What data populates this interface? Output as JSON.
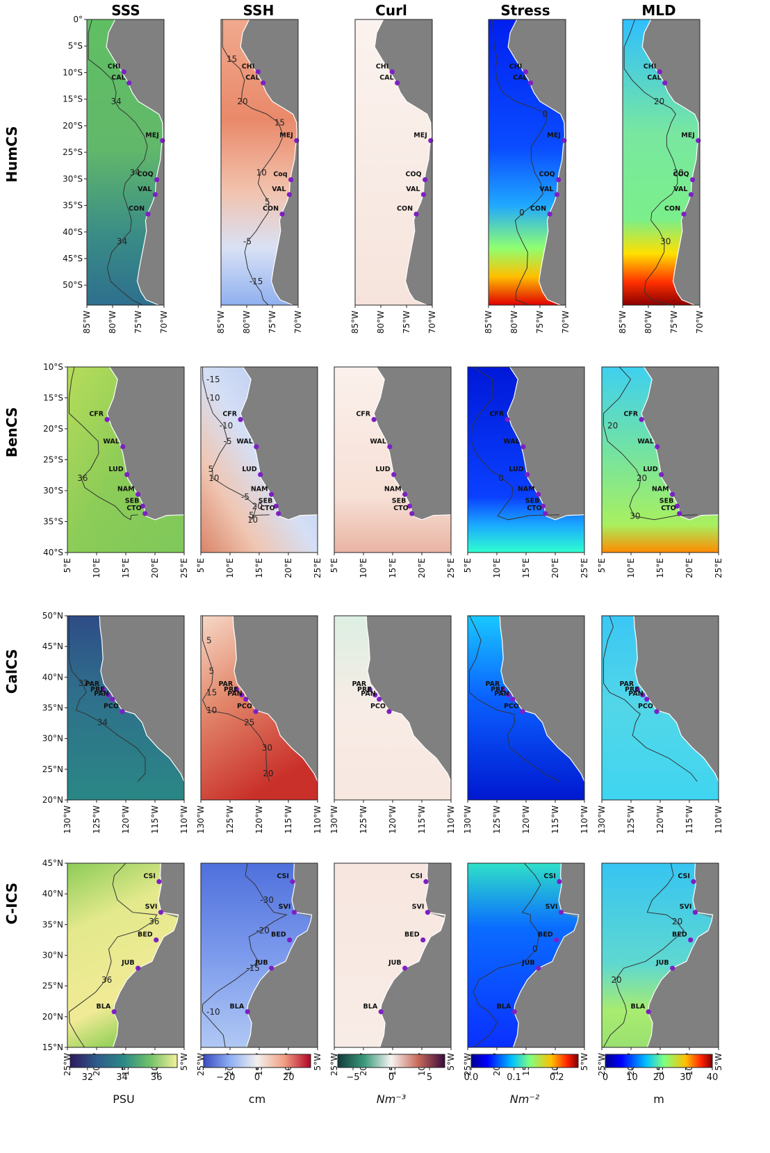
{
  "columns": [
    "SSS",
    "SSH",
    "Curl",
    "Stress",
    "MLD"
  ],
  "colors": {
    "land": "#808080",
    "station": "#7d1fc4"
  },
  "rows": [
    {
      "name": "HumCS",
      "yticks": [
        "0°",
        "5°S",
        "10°S",
        "15°S",
        "20°S",
        "25°S",
        "30°S",
        "35°S",
        "40°S",
        "45°S",
        "50°S"
      ],
      "xticks": [
        "85°W",
        "80°W",
        "75°W",
        "70°W"
      ],
      "stations": [
        {
          "label": "CHI",
          "lon": -77.8,
          "lat": -9.9
        },
        {
          "label": "CAL",
          "lon": -76.8,
          "lat": -12.0
        },
        {
          "label": "MEJ",
          "lon": -70.3,
          "lat": -22.9
        },
        {
          "label": "COQ",
          "lon": -71.4,
          "lat": -30.3
        },
        {
          "label": "VAL",
          "lon": -71.7,
          "lat": -33.1
        },
        {
          "label": "CON",
          "lon": -73.1,
          "lat": -36.8
        }
      ],
      "station_labels_alt": {
        "3": "Coq"
      },
      "contour_labels": {
        "SSS": [
          "34",
          "34",
          "34"
        ],
        "SSH": [
          "15",
          "20",
          "15",
          "10",
          "5",
          "-5",
          "-15"
        ],
        "Stress": [
          "0",
          "0"
        ],
        "MLD": [
          "20",
          "20",
          "30"
        ]
      }
    },
    {
      "name": "BenCS",
      "yticks": [
        "10°S",
        "15°S",
        "20°S",
        "25°S",
        "30°S",
        "35°S",
        "40°S"
      ],
      "xticks": [
        "5°E",
        "10°E",
        "15°E",
        "20°E",
        "25°E"
      ],
      "stations": [
        {
          "label": "CFR",
          "lon": 11.8,
          "lat": -18.5
        },
        {
          "label": "WAL",
          "lon": 14.5,
          "lat": -22.9
        },
        {
          "label": "LUD",
          "lon": 15.2,
          "lat": -27.4
        },
        {
          "label": "NAM",
          "lon": 17.1,
          "lat": -30.6
        },
        {
          "label": "SEB",
          "lon": 17.9,
          "lat": -32.5
        },
        {
          "label": "CTO",
          "lon": 18.3,
          "lat": -33.7
        }
      ],
      "contour_labels": {
        "SSS": [
          "36"
        ],
        "SSH": [
          "-15",
          "-10",
          "-10",
          "-5",
          "5",
          "10",
          "-5",
          "20",
          "10",
          "5"
        ],
        "Stress": [
          "0"
        ],
        "MLD": [
          "20",
          "20",
          "30"
        ]
      }
    },
    {
      "name": "CalCS",
      "yticks": [
        "50°N",
        "45°N",
        "40°N",
        "35°N",
        "30°N",
        "25°N",
        "20°N"
      ],
      "xticks": [
        "130°W",
        "125°W",
        "120°W",
        "115°W",
        "110°W"
      ],
      "stations": [
        {
          "label": "PAR",
          "lon": -123.9,
          "lat": 38.0
        },
        {
          "label": "PRE",
          "lon": -123.0,
          "lat": 37.1
        },
        {
          "label": "PAN",
          "lon": -122.3,
          "lat": 36.4
        },
        {
          "label": "PCO",
          "lon": -120.6,
          "lat": 34.4
        }
      ],
      "contour_labels": {
        "SSS": [
          "32",
          "34"
        ],
        "SSH": [
          "5",
          "5",
          "15",
          "10",
          "25",
          "30",
          "20"
        ],
        "Stress": [],
        "MLD": []
      }
    },
    {
      "name": "C-ICS",
      "yticks": [
        "45°N",
        "40°N",
        "35°N",
        "30°N",
        "25°N",
        "20°N",
        "15°N"
      ],
      "xticks": [
        "25°W",
        "20°W",
        "15°W",
        "10°W",
        "5°W"
      ],
      "stations": [
        {
          "label": "CSI",
          "lon": -9.3,
          "lat": 42.0
        },
        {
          "label": "SVI",
          "lon": -9.0,
          "lat": 37.0
        },
        {
          "label": "BED",
          "lon": -9.8,
          "lat": 32.5
        },
        {
          "label": "JUB",
          "lon": -12.9,
          "lat": 27.9
        },
        {
          "label": "BLA",
          "lon": -17.0,
          "lat": 20.8
        }
      ],
      "contour_labels": {
        "SSS": [
          "36",
          "36"
        ],
        "SSH": [
          "-30",
          "-20",
          "-15",
          "-10"
        ],
        "Stress": [
          "0"
        ],
        "MLD": [
          "20",
          "20"
        ]
      }
    }
  ],
  "colorbars": [
    {
      "column": "SSS",
      "unit": "PSU",
      "ticks": [
        "32",
        "34",
        "36"
      ],
      "tick_values": [
        32,
        34,
        36
      ],
      "range": [
        31,
        37.2
      ]
    },
    {
      "column": "SSH",
      "unit": "cm",
      "ticks": [
        "−20",
        "0",
        "20"
      ],
      "tick_values": [
        -20,
        0,
        20
      ],
      "range": [
        -34,
        34
      ]
    },
    {
      "column": "Curl",
      "unit": "Nm⁻³",
      "ticks": [
        "−5",
        "0",
        "5"
      ],
      "tick_values": [
        -5,
        0,
        5
      ],
      "range": [
        -7,
        7
      ]
    },
    {
      "column": "Stress",
      "unit": "Nm⁻²",
      "ticks": [
        "0.0",
        "0.1",
        "0.2"
      ],
      "tick_values": [
        0,
        0.1,
        0.2
      ],
      "range": [
        0,
        0.25
      ]
    },
    {
      "column": "MLD",
      "unit": "m",
      "ticks": [
        "0",
        "10",
        "20",
        "30",
        "40"
      ],
      "tick_values": [
        0,
        10,
        20,
        30,
        40
      ],
      "range": [
        0,
        40
      ]
    }
  ],
  "chart_data": {
    "type": "heatmap",
    "title": "",
    "variables": [
      "SSS",
      "SSH",
      "Curl",
      "Stress",
      "MLD"
    ],
    "units": {
      "SSS": "PSU",
      "SSH": "cm",
      "Curl": "Nm⁻³",
      "Stress": "Nm⁻²",
      "MLD": "m"
    },
    "regions": [
      {
        "name": "HumCS",
        "lon_range": [
          -85,
          -70
        ],
        "lat_range": [
          -54,
          0
        ]
      },
      {
        "name": "BenCS",
        "lon_range": [
          5,
          25
        ],
        "lat_range": [
          -40,
          -10
        ]
      },
      {
        "name": "CalCS",
        "lon_range": [
          -130,
          -110
        ],
        "lat_range": [
          20,
          50
        ]
      },
      {
        "name": "C-ICS",
        "lon_range": [
          -25,
          -5
        ],
        "lat_range": [
          15,
          45
        ]
      }
    ],
    "colorbar_ranges": {
      "SSS": [
        31,
        37.2
      ],
      "SSH": [
        -34,
        34
      ],
      "Curl": [
        -7,
        7
      ],
      "Stress": [
        0,
        0.25
      ],
      "MLD": [
        0,
        40
      ]
    },
    "grid": false
  }
}
